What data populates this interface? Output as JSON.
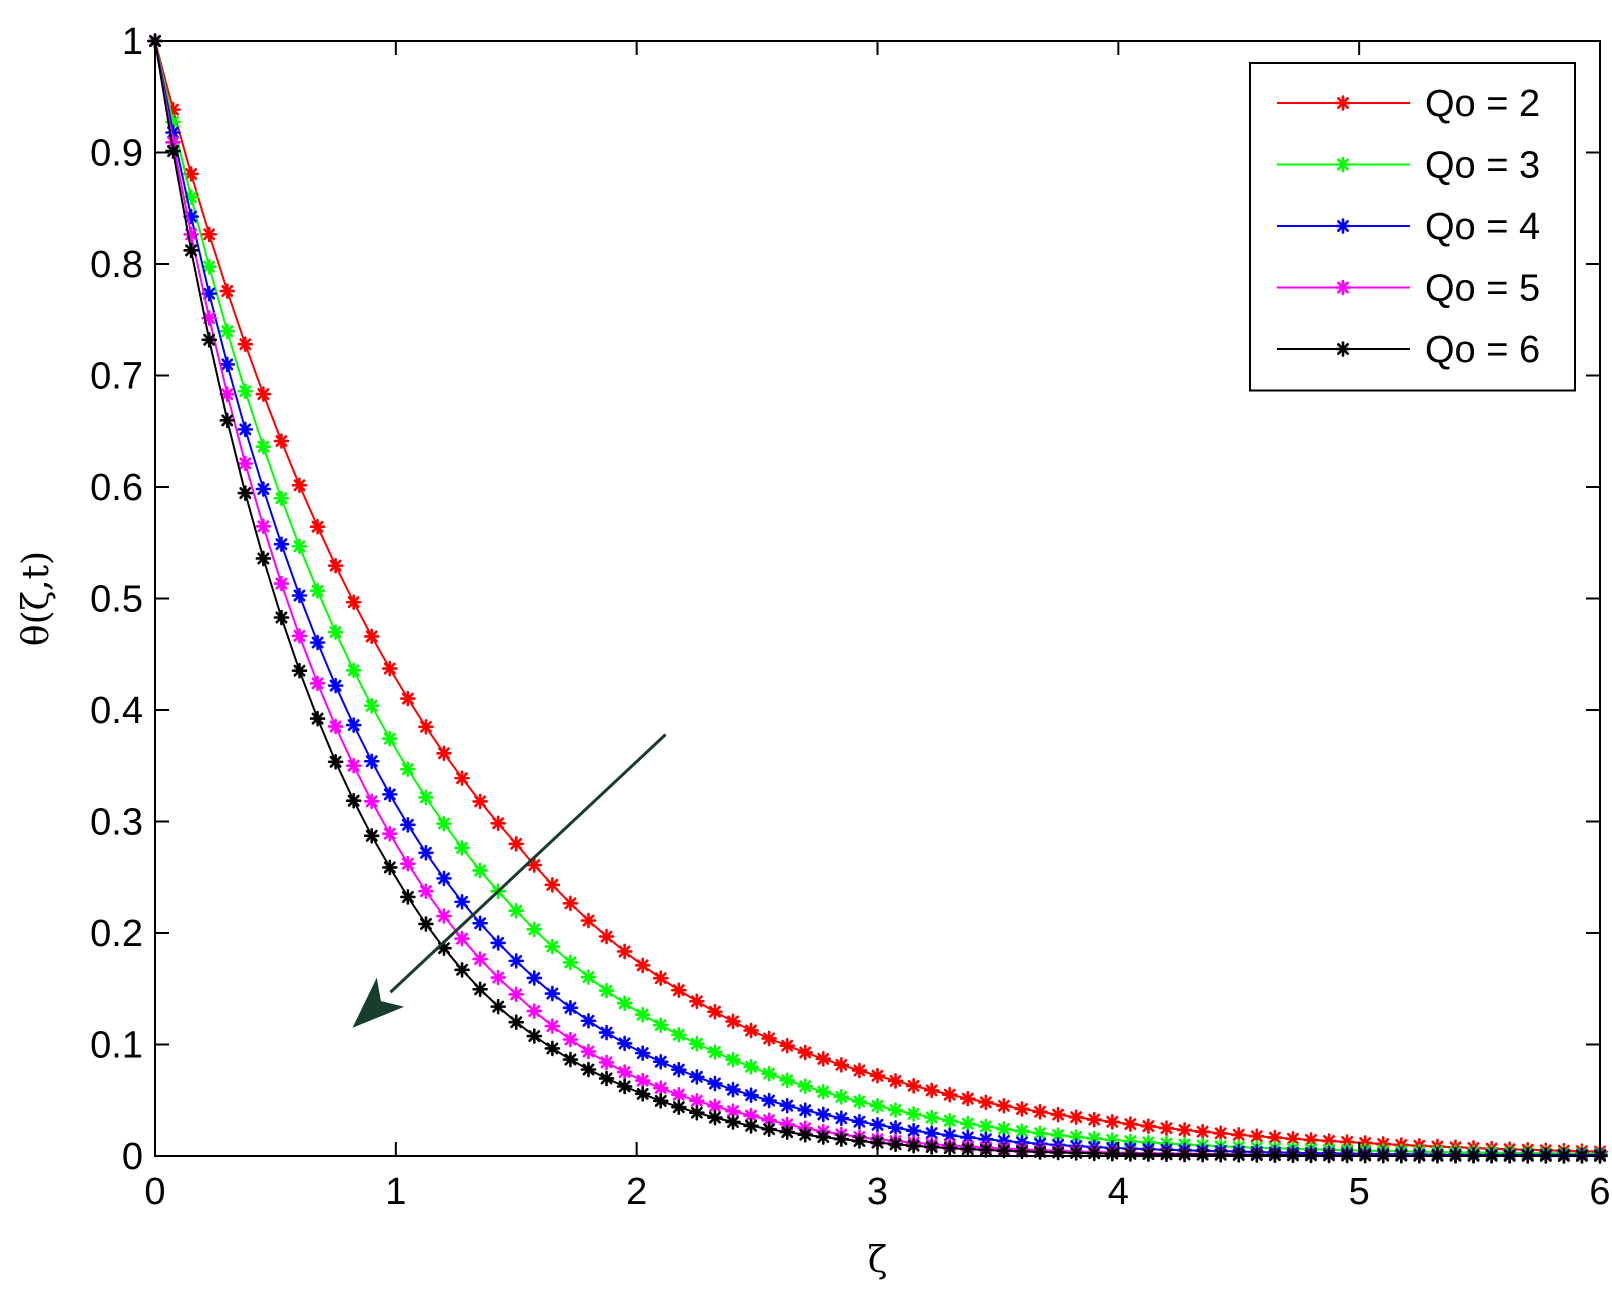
{
  "chart_data": {
    "type": "line",
    "title": "",
    "xlabel": "ζ",
    "ylabel": "θ(ζ,t)",
    "xlim": [
      0,
      6
    ],
    "ylim": [
      0,
      1
    ],
    "xticks": [
      0,
      1,
      2,
      3,
      4,
      5,
      6
    ],
    "xtick_labels": [
      "0",
      "1",
      "2",
      "3",
      "4",
      "5",
      "6"
    ],
    "yticks": [
      0,
      0.1,
      0.2,
      0.3,
      0.4,
      0.5,
      0.6,
      0.7,
      0.8,
      0.9,
      1
    ],
    "ytick_labels": [
      "0",
      "0.1",
      "0.2",
      "0.3",
      "0.4",
      "0.5",
      "0.6",
      "0.7",
      "0.8",
      "0.9",
      "1"
    ],
    "grid": false,
    "legend_position": "top-right",
    "marker": "star",
    "x_sampling": {
      "start": 0,
      "end": 6,
      "step": 0.075
    },
    "series": [
      {
        "name": "Qo = 2",
        "color": "#ff0000",
        "x": [
          0,
          0.5,
          1,
          1.5,
          2,
          2.5,
          3,
          3.5,
          4,
          4.5,
          5,
          5.5,
          6
        ],
        "y": [
          1,
          0.655,
          0.428,
          0.28,
          0.175,
          0.11,
          0.072,
          0.046,
          0.03,
          0.019,
          0.012,
          0.007,
          0.004
        ]
      },
      {
        "name": "Qo = 3",
        "color": "#00ff00",
        "x": [
          0,
          0.5,
          1,
          1.5,
          2,
          2.5,
          3,
          3.5,
          4,
          4.5,
          5,
          5.5,
          6
        ],
        "y": [
          1,
          0.605,
          0.365,
          0.22,
          0.13,
          0.078,
          0.045,
          0.025,
          0.014,
          0.008,
          0.005,
          0.003,
          0.002
        ]
      },
      {
        "name": "Qo = 4",
        "color": "#0000ff",
        "x": [
          0,
          0.5,
          1,
          1.5,
          2,
          2.5,
          3,
          3.5,
          4,
          4.5,
          5,
          5.5,
          6
        ],
        "y": [
          1,
          0.565,
          0.315,
          0.175,
          0.095,
          0.053,
          0.028,
          0.014,
          0.007,
          0.004,
          0.002,
          0.001,
          0.001
        ]
      },
      {
        "name": "Qo = 5",
        "color": "#ff00ff",
        "x": [
          0,
          0.5,
          1,
          1.5,
          2,
          2.5,
          3,
          3.5,
          4,
          4.5,
          5,
          5.5,
          6
        ],
        "y": [
          1,
          0.53,
          0.28,
          0.145,
          0.07,
          0.035,
          0.015,
          0.007,
          0.003,
          0.0015,
          0.0007,
          0.0003,
          0.0001
        ]
      },
      {
        "name": "Qo = 6",
        "color": "#000000",
        "x": [
          0,
          0.5,
          1,
          1.5,
          2,
          2.5,
          3,
          3.5,
          4,
          4.5,
          5,
          5.5,
          6
        ],
        "y": [
          1,
          0.5,
          0.25,
          0.12,
          0.058,
          0.026,
          0.012,
          0.005,
          0.002,
          0.001,
          0.0004,
          0.0002,
          0.0001
        ]
      }
    ],
    "annotations": [
      {
        "type": "arrow",
        "color": "#173d2c",
        "from": [
          2.12,
          0.378
        ],
        "to": [
          0.82,
          0.115
        ]
      }
    ]
  }
}
